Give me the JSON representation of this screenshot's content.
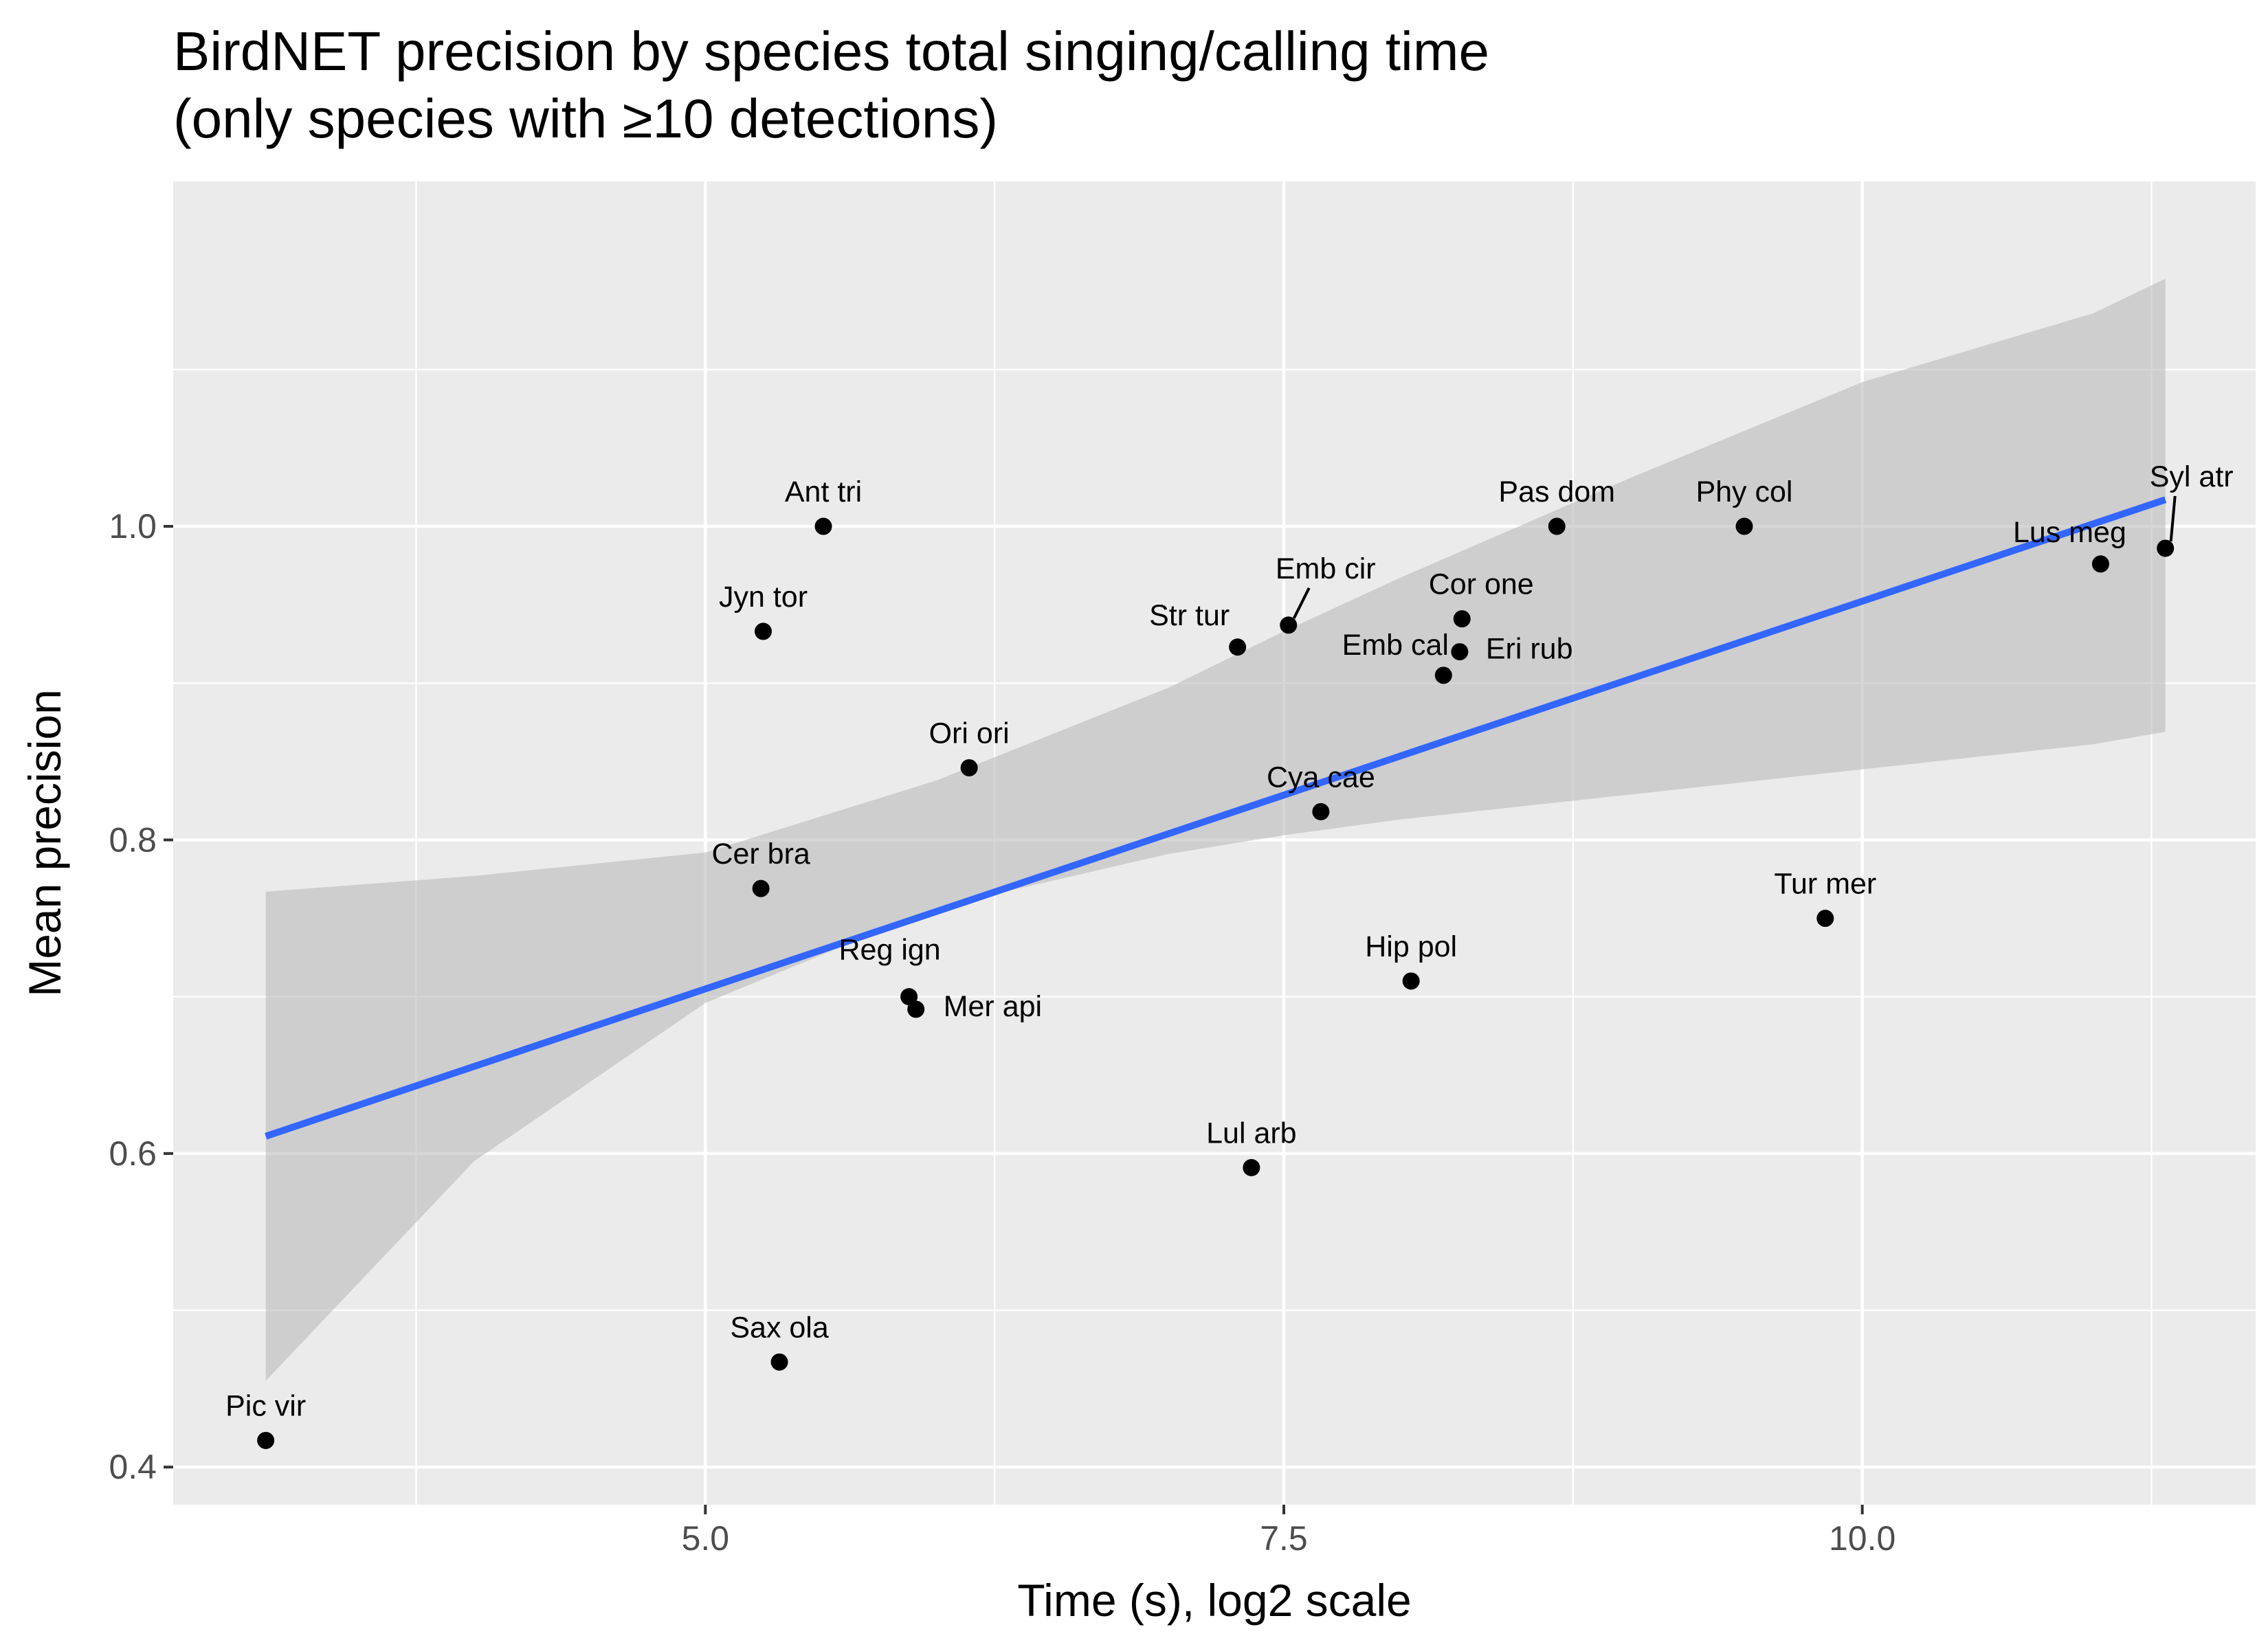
{
  "chart_data": {
    "type": "scatter",
    "title": "BirdNET precision by species total singing/calling time",
    "subtitle": "(only species with ≥10 detections)",
    "xlabel": "Time (s), log2 scale",
    "ylabel": "Mean precision",
    "xlim": [
      2.7,
      11.7
    ],
    "ylim": [
      0.376,
      1.22
    ],
    "x_ticks": [
      {
        "value": 5.0,
        "label": "5.0"
      },
      {
        "value": 7.5,
        "label": "7.5"
      },
      {
        "value": 10.0,
        "label": "10.0"
      }
    ],
    "y_ticks": [
      {
        "value": 0.4,
        "label": "0.4"
      },
      {
        "value": 0.6,
        "label": "0.6"
      },
      {
        "value": 0.8,
        "label": "0.8"
      },
      {
        "value": 1.0,
        "label": "1.0"
      }
    ],
    "grid": true,
    "points": [
      {
        "label": "Pic vir",
        "x": 3.1,
        "y": 0.417
      },
      {
        "label": "Sax ola",
        "x": 5.32,
        "y": 0.467
      },
      {
        "label": "Jyn tor",
        "x": 5.25,
        "y": 0.933
      },
      {
        "label": "Cer bra",
        "x": 5.24,
        "y": 0.769
      },
      {
        "label": "Ant tri",
        "x": 5.51,
        "y": 1.0
      },
      {
        "label": "Reg ign",
        "x": 5.88,
        "y": 0.7
      },
      {
        "label": "Mer api",
        "x": 5.91,
        "y": 0.692
      },
      {
        "label": "Ori ori",
        "x": 6.14,
        "y": 0.846
      },
      {
        "label": "Str tur",
        "x": 7.3,
        "y": 0.923
      },
      {
        "label": "Lul arb",
        "x": 7.36,
        "y": 0.591
      },
      {
        "label": "Emb cir",
        "x": 7.52,
        "y": 0.937
      },
      {
        "label": "Cya cae",
        "x": 7.66,
        "y": 0.818
      },
      {
        "label": "Hip pol",
        "x": 8.05,
        "y": 0.71
      },
      {
        "label": "Emb cal",
        "x": 8.19,
        "y": 0.905
      },
      {
        "label": "Eri rub",
        "x": 8.26,
        "y": 0.92
      },
      {
        "label": "Cor one",
        "x": 8.27,
        "y": 0.941
      },
      {
        "label": "Pas dom",
        "x": 8.68,
        "y": 1.0
      },
      {
        "label": "Phy col",
        "x": 9.49,
        "y": 1.0
      },
      {
        "label": "Tur mer",
        "x": 9.84,
        "y": 0.75
      },
      {
        "label": "Lus meg",
        "x": 11.03,
        "y": 0.976
      },
      {
        "label": "Syl atr",
        "x": 11.31,
        "y": 0.986
      }
    ],
    "trend_line": {
      "x": [
        3.1,
        11.31
      ],
      "y": [
        0.611,
        1.017
      ]
    },
    "confidence_band": {
      "x": [
        3.1,
        4.0,
        5.0,
        6.0,
        7.0,
        7.5,
        8.0,
        9.0,
        10.0,
        11.0,
        11.31
      ],
      "lower": [
        0.455,
        0.595,
        0.696,
        0.757,
        0.791,
        0.803,
        0.813,
        0.829,
        0.845,
        0.861,
        0.869
      ],
      "upper": [
        0.767,
        0.777,
        0.792,
        0.838,
        0.897,
        0.933,
        0.967,
        1.031,
        1.092,
        1.136,
        1.158
      ]
    },
    "colors": {
      "panel_bg": "#ebebeb",
      "grid": "#ffffff",
      "point": "#000000",
      "trend": "#3366ff",
      "band": "#bdbdbd"
    }
  }
}
